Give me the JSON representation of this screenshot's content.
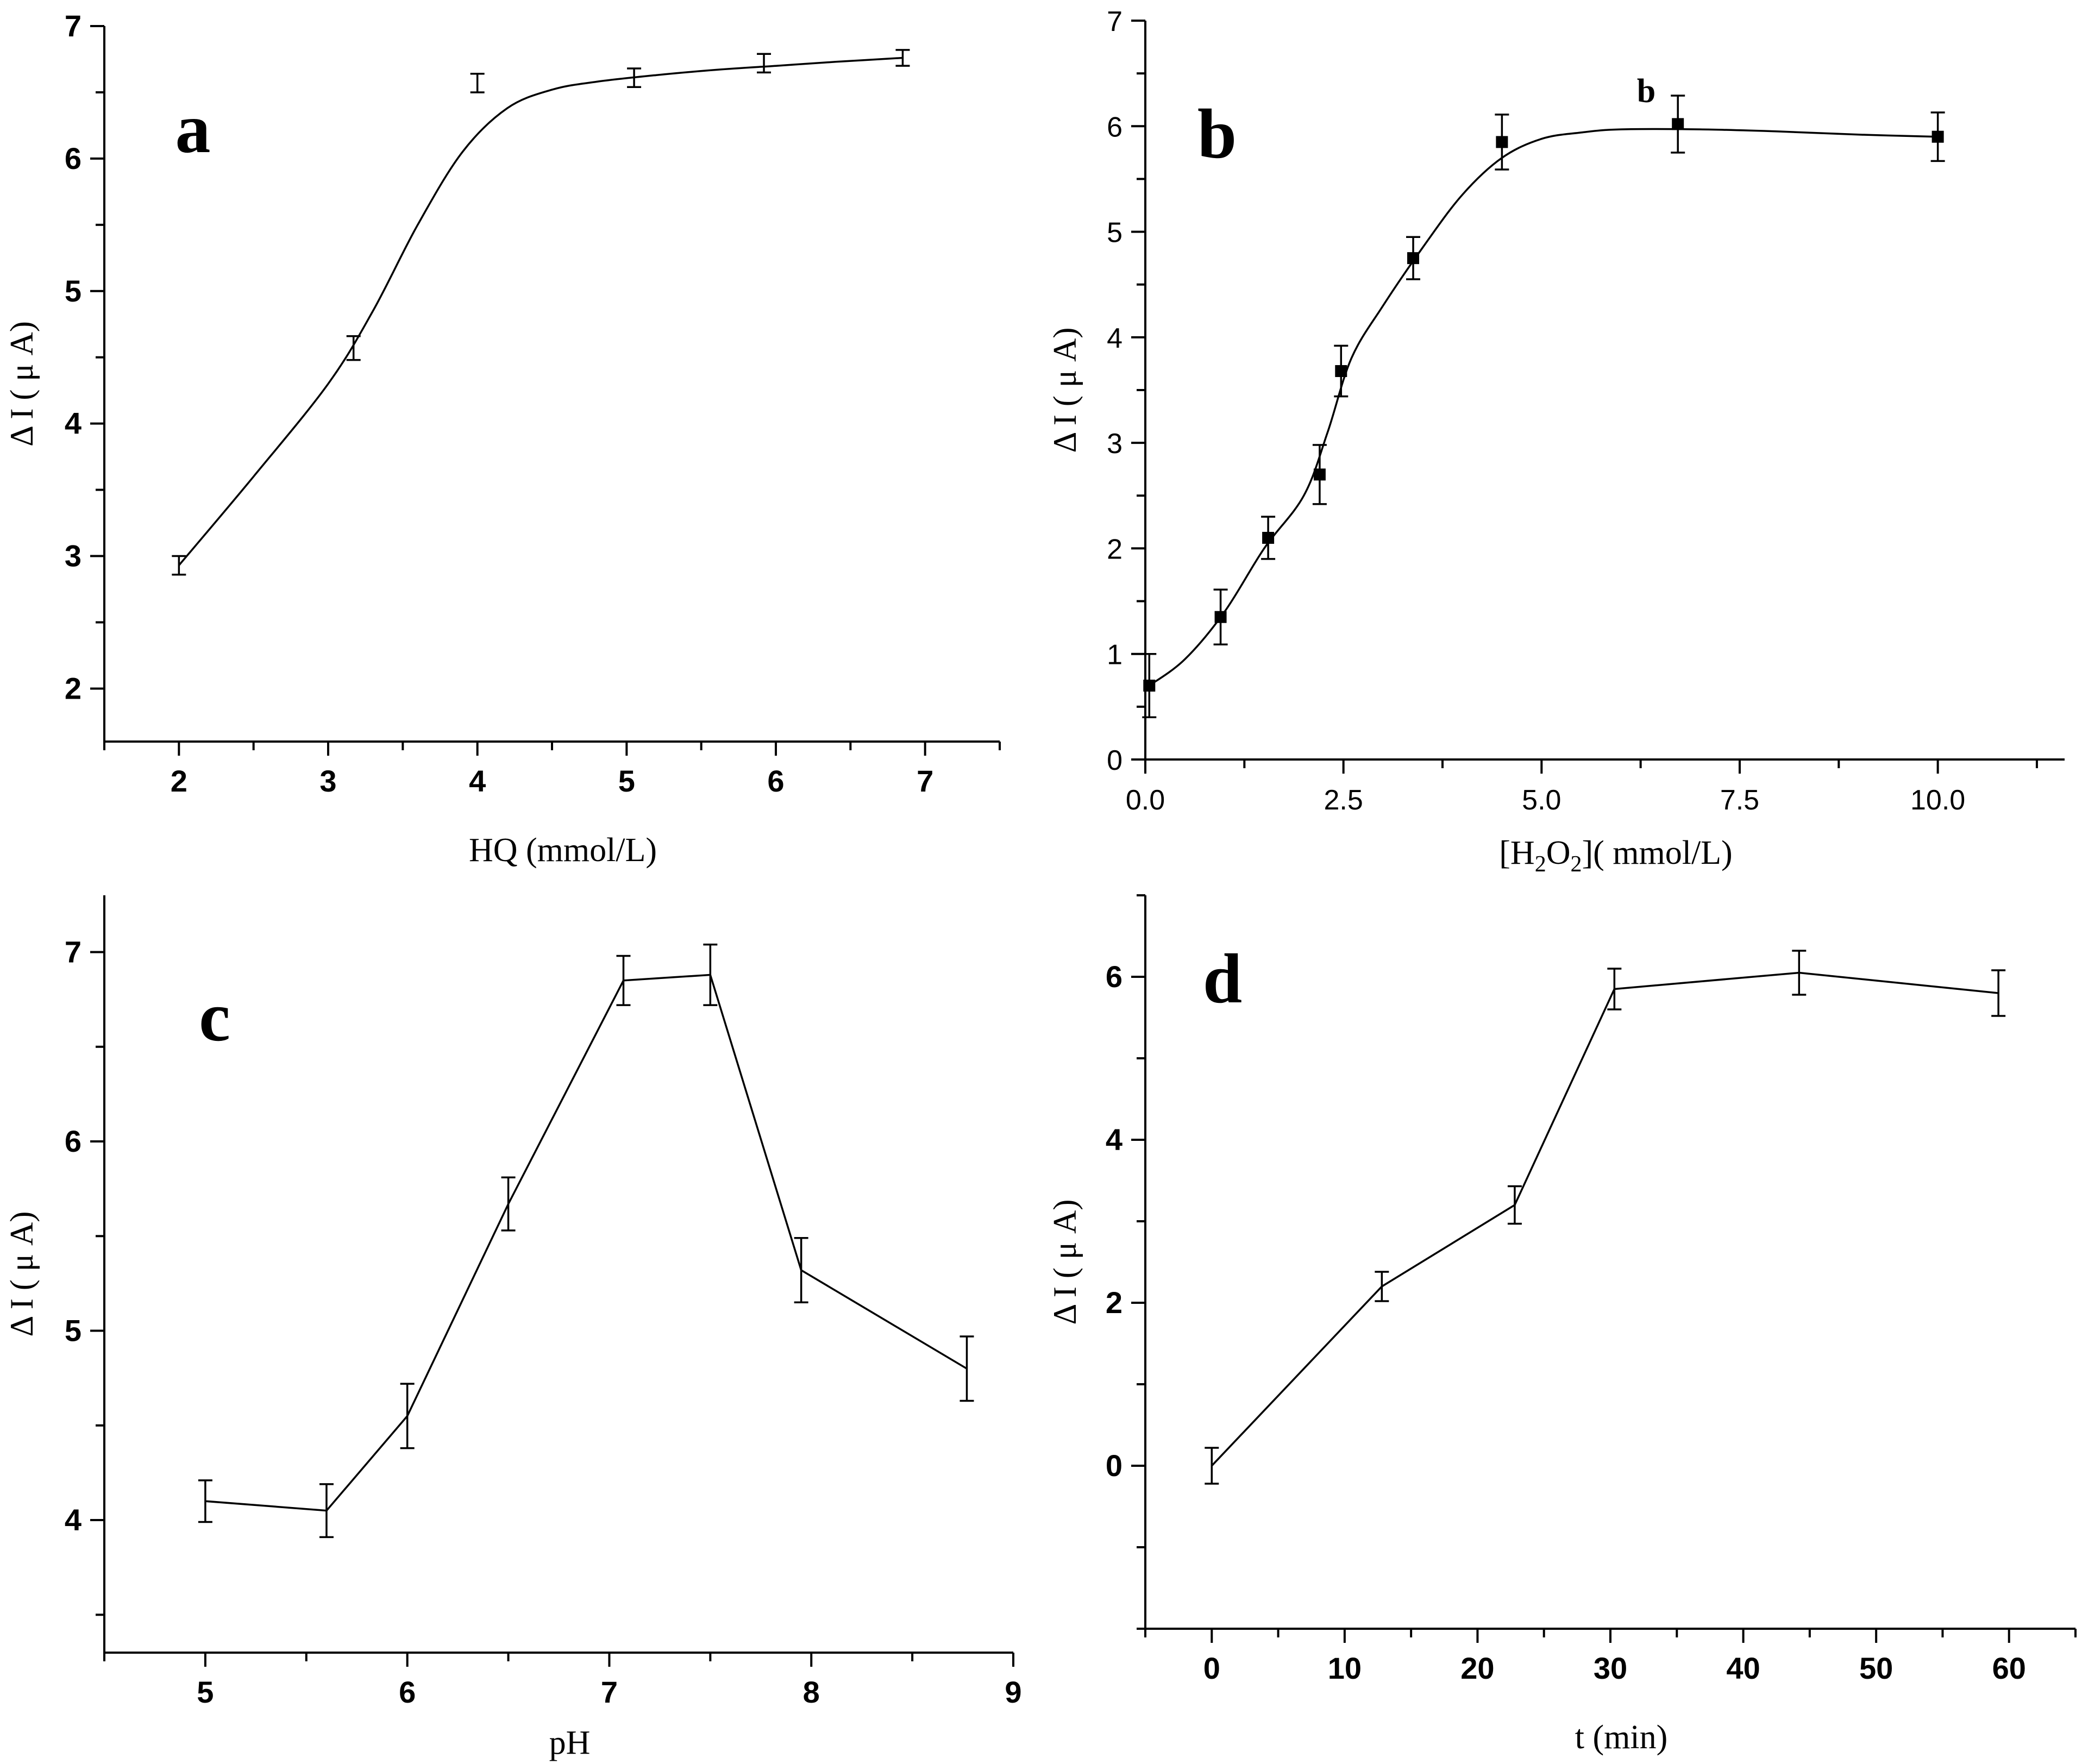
{
  "chart_data": [
    {
      "id": "a",
      "type": "line",
      "panel_letter": "a",
      "xlabel": "HQ (mmol/L)",
      "ylabel": "Δ I ( μ A)",
      "xlim": [
        1.5,
        7.5
      ],
      "ylim": [
        1.6,
        7.0
      ],
      "xticks": [
        2,
        3,
        4,
        5,
        6,
        7
      ],
      "yticks": [
        2,
        3,
        4,
        5,
        6,
        7
      ],
      "smooth": true,
      "markers": false,
      "x": [
        2.0,
        3.17,
        4.0,
        5.05,
        5.92,
        6.85
      ],
      "y": [
        2.93,
        4.57,
        6.57,
        6.61,
        6.72,
        6.76
      ],
      "err": [
        0.07,
        0.09,
        0.07,
        0.07,
        0.07,
        0.06
      ],
      "curve_x": [
        2.0,
        2.5,
        3.0,
        3.3,
        3.6,
        3.9,
        4.2,
        4.5,
        4.8,
        5.2,
        5.6,
        6.0,
        6.4,
        6.85
      ],
      "curve_y": [
        2.93,
        3.6,
        4.3,
        4.85,
        5.5,
        6.05,
        6.38,
        6.52,
        6.58,
        6.63,
        6.67,
        6.7,
        6.73,
        6.76
      ]
    },
    {
      "id": "b",
      "type": "line",
      "panel_letter": "b",
      "annotation": "b",
      "xlabel_parts": [
        "[H",
        "2",
        "O",
        "2",
        "](  mmol/L)"
      ],
      "ylabel": "Δ I ( μ A)",
      "xlim": [
        0,
        11.6
      ],
      "ylim": [
        0,
        7
      ],
      "xticks": [
        0,
        2.5,
        5,
        7.5,
        10
      ],
      "xtick_labels": [
        "0.0",
        "2.5",
        "5.0",
        "7.5",
        "10.0"
      ],
      "yticks": [
        0,
        1,
        2,
        3,
        4,
        5,
        6,
        7
      ],
      "smooth": true,
      "markers": true,
      "x": [
        0.05,
        0.95,
        1.55,
        2.2,
        2.47,
        3.38,
        4.5,
        6.72,
        10.0
      ],
      "y": [
        0.7,
        1.35,
        2.1,
        2.7,
        3.68,
        4.75,
        5.85,
        6.02,
        5.9
      ],
      "err": [
        0.3,
        0.26,
        0.2,
        0.28,
        0.24,
        0.2,
        0.26,
        0.27,
        0.23
      ],
      "curve_x": [
        0.05,
        0.5,
        1.0,
        1.5,
        2.0,
        2.3,
        2.6,
        3.0,
        3.5,
        4.0,
        4.5,
        5.0,
        5.5,
        6.0,
        7.0,
        8.0,
        9.0,
        10.0
      ],
      "curve_y": [
        0.7,
        0.95,
        1.4,
        2.0,
        2.5,
        3.1,
        3.8,
        4.3,
        4.85,
        5.35,
        5.7,
        5.88,
        5.94,
        5.97,
        5.97,
        5.95,
        5.92,
        5.9
      ]
    },
    {
      "id": "c",
      "type": "line",
      "panel_letter": "c",
      "xlabel": "pH",
      "ylabel": "Δ I ( μ A)",
      "xlim": [
        4.5,
        9.0
      ],
      "ylim": [
        3.3,
        7.3
      ],
      "xticks": [
        5,
        6,
        7,
        8,
        9
      ],
      "yticks": [
        4,
        5,
        6,
        7
      ],
      "smooth": false,
      "markers": false,
      "x": [
        5.0,
        5.6,
        6.0,
        6.5,
        7.07,
        7.5,
        7.95,
        8.77
      ],
      "y": [
        4.1,
        4.05,
        4.55,
        5.67,
        6.85,
        6.88,
        5.32,
        4.8
      ],
      "err": [
        0.11,
        0.14,
        0.17,
        0.14,
        0.13,
        0.16,
        0.17,
        0.17
      ]
    },
    {
      "id": "d",
      "type": "line",
      "panel_letter": "d",
      "xlabel": "t (min)",
      "ylabel": "Δ I ( μ A)",
      "xlim": [
        -5,
        65
      ],
      "ylim": [
        -2,
        7
      ],
      "xticks": [
        0,
        10,
        20,
        30,
        40,
        50,
        60
      ],
      "yticks": [
        0,
        2,
        4,
        6
      ],
      "smooth": false,
      "markers": false,
      "x": [
        0.0,
        12.8,
        22.8,
        30.3,
        44.2,
        59.2
      ],
      "y": [
        0.0,
        2.2,
        3.2,
        5.85,
        6.05,
        5.8
      ],
      "err": [
        0.22,
        0.18,
        0.23,
        0.25,
        0.27,
        0.28
      ]
    }
  ]
}
